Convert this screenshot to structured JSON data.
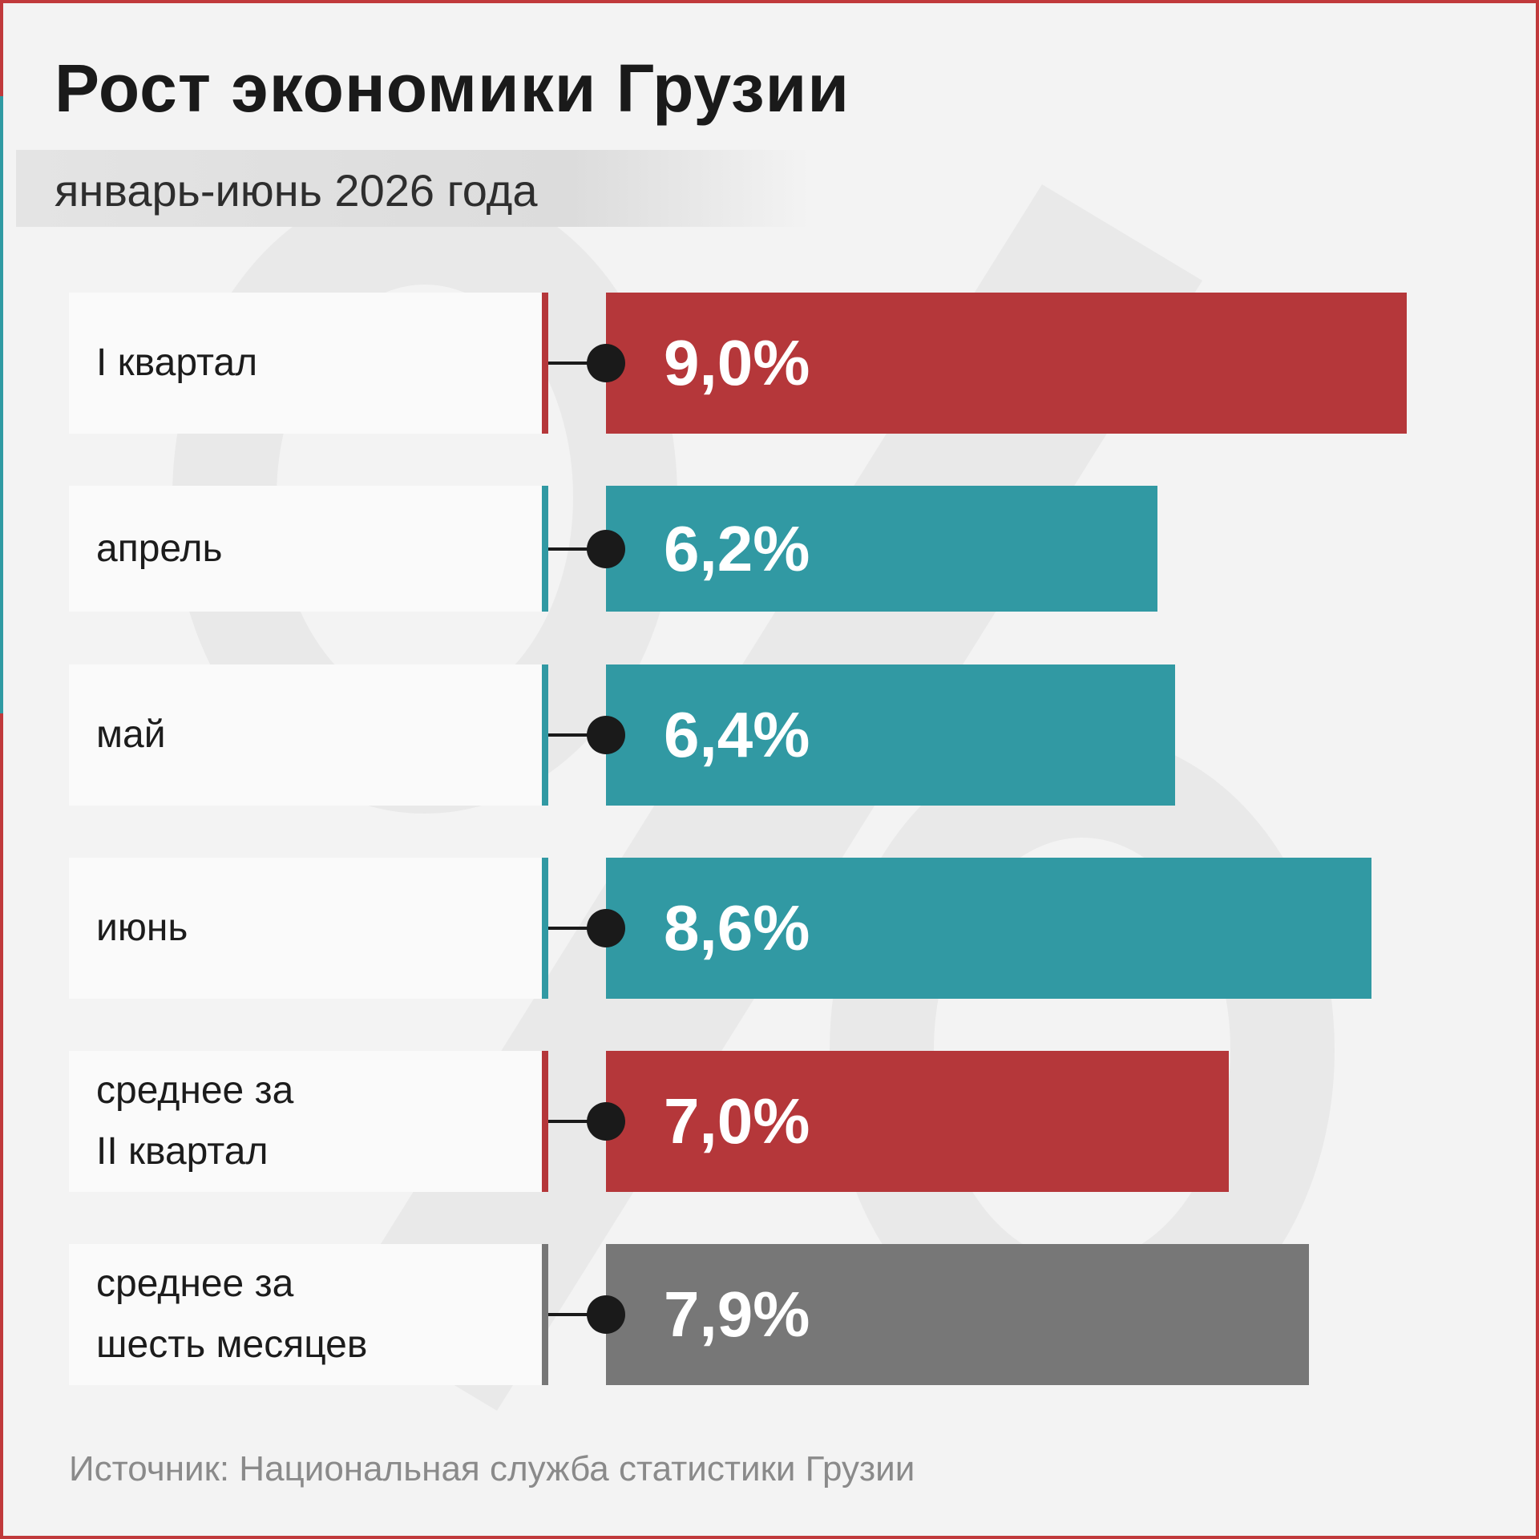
{
  "title": "Рост экономики Грузии",
  "subtitle": "январь-июнь 2026 года",
  "source": "Источник: Национальная служба статистики Грузии",
  "colors": {
    "red": "#b5373a",
    "teal": "#3199a3",
    "gray": "#777777"
  },
  "chart_data": {
    "type": "bar",
    "orientation": "horizontal",
    "title": "Рост экономики Грузии",
    "subtitle": "январь-июнь 2026 года",
    "categories": [
      "I квартал",
      "апрель",
      "май",
      "июнь",
      "среднее за II квартал",
      "среднее за шесть месяцев"
    ],
    "values": [
      9.0,
      6.2,
      6.4,
      8.6,
      7.0,
      7.9
    ],
    "unit": "%",
    "rows": [
      {
        "label_lines": [
          "I квартал"
        ],
        "value": 9.0,
        "display": "9,0%",
        "color": "#b5373a"
      },
      {
        "label_lines": [
          "апрель"
        ],
        "value": 6.2,
        "display": "6,2%",
        "color": "#3199a3"
      },
      {
        "label_lines": [
          "май"
        ],
        "value": 6.4,
        "display": "6,4%",
        "color": "#3199a3"
      },
      {
        "label_lines": [
          "июнь"
        ],
        "value": 8.6,
        "display": "8,6%",
        "color": "#3199a3"
      },
      {
        "label_lines": [
          "среднее за",
          "II квартал"
        ],
        "value": 7.0,
        "display": "7,0%",
        "color": "#b5373a"
      },
      {
        "label_lines": [
          "среднее за",
          "шесть месяцев"
        ],
        "value": 7.9,
        "display": "7,9%",
        "color": "#777777"
      }
    ]
  }
}
